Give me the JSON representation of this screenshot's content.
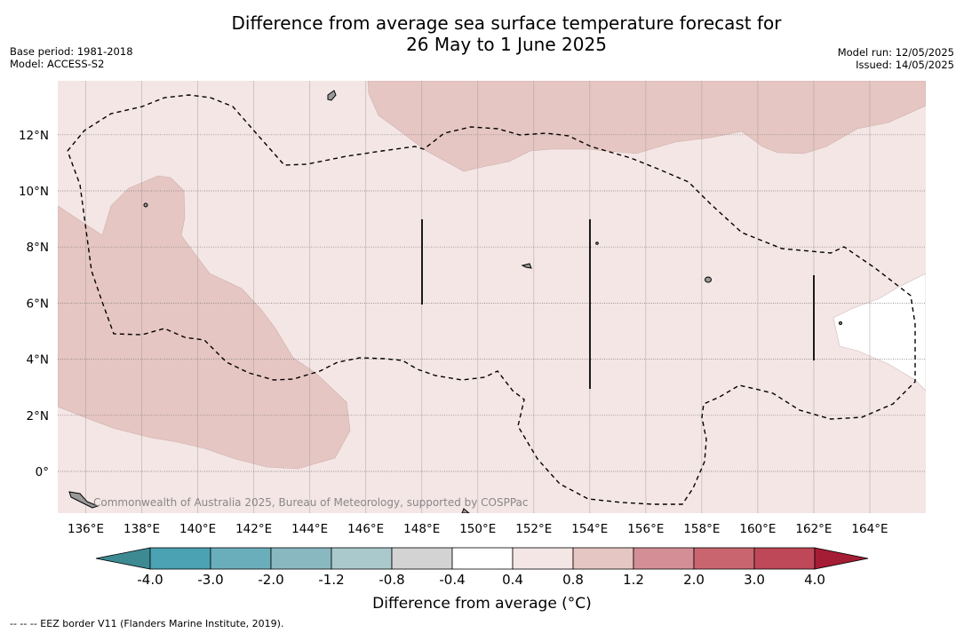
{
  "header": {
    "title_line1": "Difference from average sea surface temperature forecast for",
    "title_line2": "26 May to 1 June 2025",
    "base_period": "Base period: 1981-2018",
    "model": "Model: ACCESS-S2",
    "model_run": "Model run: 12/05/2025",
    "issued": "Issued: 14/05/2025"
  },
  "map": {
    "lat_labels": [
      "12°N",
      "10°N",
      "8°N",
      "6°N",
      "4°N",
      "2°N",
      "0°"
    ],
    "lon_labels": [
      "136°E",
      "138°E",
      "140°E",
      "142°E",
      "144°E",
      "146°E",
      "148°E",
      "150°E",
      "152°E",
      "154°E",
      "156°E",
      "158°E",
      "160°E",
      "162°E",
      "164°E"
    ],
    "copyright": "Commonwealth of Australia 2025, Bureau of Meteorology, supported by COSPPac",
    "colors": {
      "background_anomaly": "#f4e6e5",
      "warm_anomaly": "#e6c6c2",
      "neutral": "#ffffff",
      "eez_border": "#000000"
    }
  },
  "colorbar": {
    "ticks": [
      "-4.0",
      "-3.0",
      "-2.0",
      "-1.2",
      "-0.8",
      "-0.4",
      "0.4",
      "0.8",
      "1.2",
      "2.0",
      "3.0",
      "4.0"
    ],
    "colors": [
      "#3d8a93",
      "#4aa2b3",
      "#6aaebb",
      "#8ab8c1",
      "#aac9cd",
      "#d3d3d3",
      "#ffffff",
      "#f4e6e5",
      "#e6c6c2",
      "#d48e95",
      "#c9656f",
      "#bf4858",
      "#a51c35"
    ],
    "title": "Difference from average (°C)"
  },
  "footnote": "-- -- -- EEZ border V11 (Flanders Marine Institute, 2019)."
}
